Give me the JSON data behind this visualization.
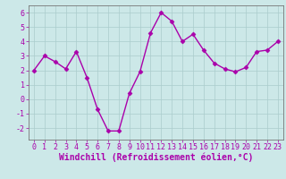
{
  "x": [
    0,
    1,
    2,
    3,
    4,
    5,
    6,
    7,
    8,
    9,
    10,
    11,
    12,
    13,
    14,
    15,
    16,
    17,
    18,
    19,
    20,
    21,
    22,
    23
  ],
  "y": [
    2.0,
    3.0,
    2.6,
    2.1,
    3.3,
    1.5,
    -0.7,
    -2.2,
    -2.2,
    0.4,
    1.9,
    4.6,
    6.0,
    5.4,
    4.0,
    4.5,
    3.4,
    2.5,
    2.1,
    1.9,
    2.2,
    3.3,
    3.4,
    4.0
  ],
  "line_color": "#aa00aa",
  "marker": "D",
  "markersize": 2.5,
  "linewidth": 1.0,
  "background_color": "#cce8e8",
  "grid_color": "#aacccc",
  "xlabel": "Windchill (Refroidissement éolien,°C)",
  "xlabel_fontsize": 7.0,
  "ylim": [
    -2.8,
    6.5
  ],
  "xlim": [
    -0.5,
    23.5
  ],
  "yticks": [
    -2,
    -1,
    0,
    1,
    2,
    3,
    4,
    5,
    6
  ],
  "xticks": [
    0,
    1,
    2,
    3,
    4,
    5,
    6,
    7,
    8,
    9,
    10,
    11,
    12,
    13,
    14,
    15,
    16,
    17,
    18,
    19,
    20,
    21,
    22,
    23
  ],
  "tick_fontsize": 6.0,
  "spine_color": "#777777"
}
